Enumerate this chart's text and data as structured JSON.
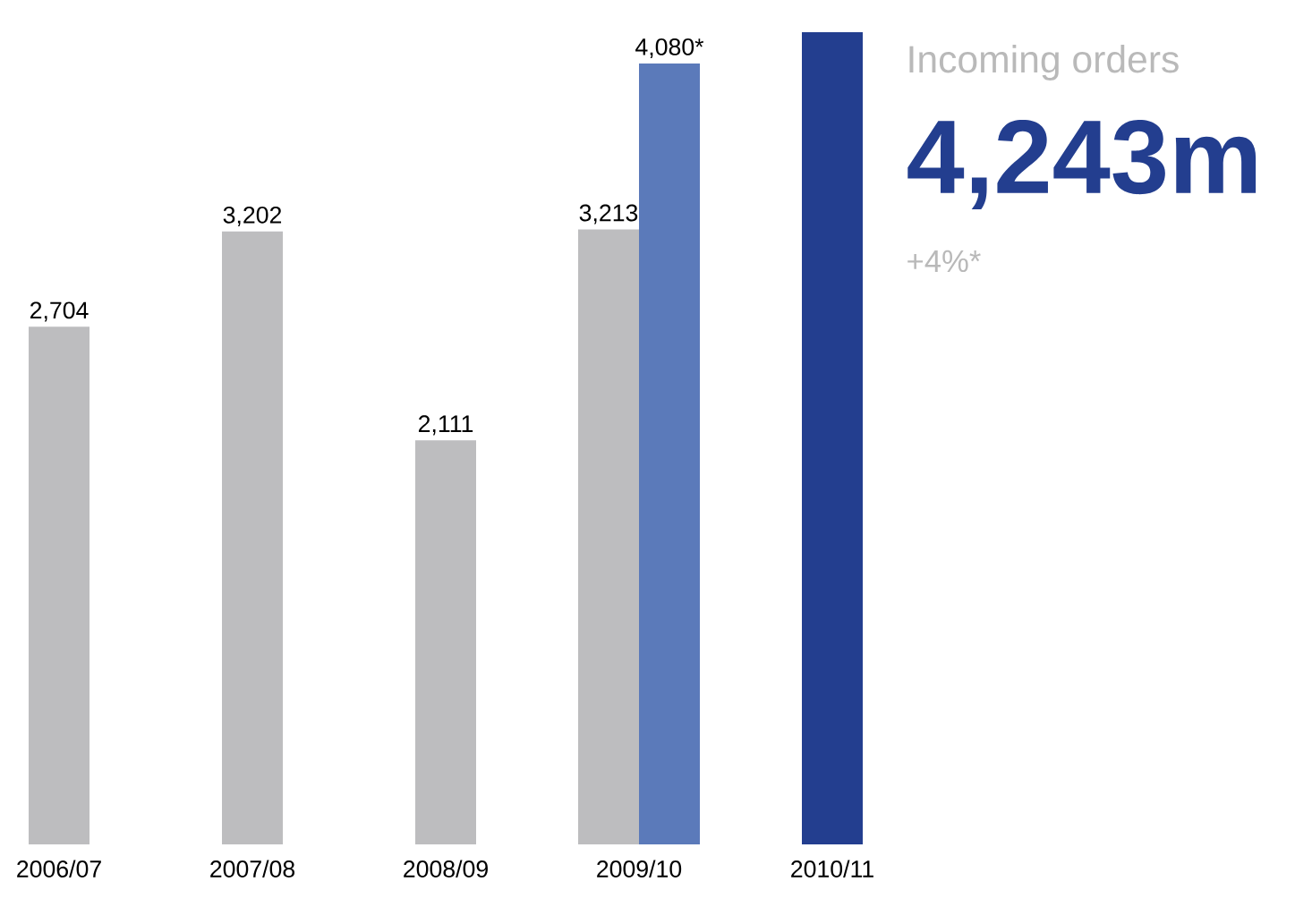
{
  "chart_data": {
    "type": "bar",
    "categories": [
      "2006/07",
      "2007/08",
      "2008/09",
      "2009/10",
      "2010/11"
    ],
    "series": [
      {
        "color": "#bdbdbf",
        "values": [
          2704,
          3202,
          2111,
          3213,
          null
        ],
        "value_labels": [
          "2,704",
          "3,202",
          "2,111",
          "3,213",
          null
        ]
      },
      {
        "color": "#5b7aba",
        "values": [
          null,
          null,
          null,
          4080,
          null
        ],
        "value_labels": [
          null,
          null,
          null,
          "4,080*",
          null
        ]
      },
      {
        "color": "#233e8f",
        "values": [
          null,
          null,
          null,
          null,
          4243
        ],
        "value_labels": [
          null,
          null,
          null,
          null,
          null
        ]
      }
    ],
    "annotations": [
      "Incoming orders",
      "4,243m",
      "+4%*"
    ]
  }
}
